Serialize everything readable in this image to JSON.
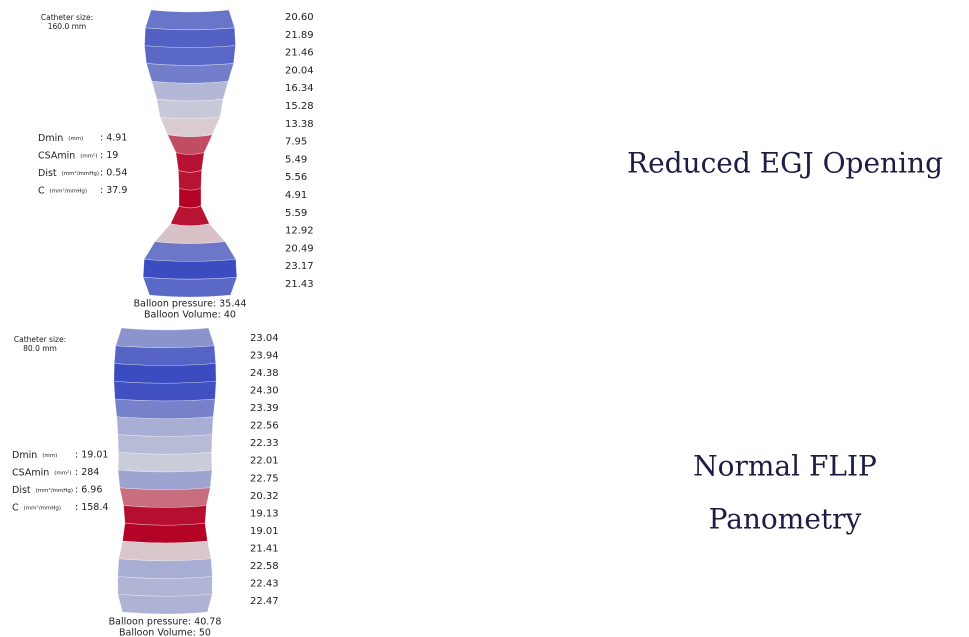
{
  "panels": [
    {
      "catheter_size_label": "Catheter size:",
      "catheter_size": "160.0 mm",
      "stats": [
        {
          "label": "Dmin",
          "unit": "(mm)",
          "value": ": 4.91"
        },
        {
          "label": "CSAmin",
          "unit": "(mm²)",
          "value": ": 19"
        },
        {
          "label": "Dist",
          "unit": "(mm²/mmHg)",
          "value": ": 0.54"
        },
        {
          "label": "C",
          "unit": "(mm²/mmHg)",
          "value": ": 37.9"
        }
      ],
      "diameters": [
        {
          "value": 20.6,
          "label": "20.60"
        },
        {
          "value": 21.89,
          "label": "21.89"
        },
        {
          "value": 21.46,
          "label": "21.46"
        },
        {
          "value": 20.04,
          "label": "20.04"
        },
        {
          "value": 16.34,
          "label": "16.34"
        },
        {
          "value": 15.28,
          "label": "15.28"
        },
        {
          "value": 13.38,
          "label": "13.38"
        },
        {
          "value": 7.95,
          "label": "7.95"
        },
        {
          "value": 5.49,
          "label": "5.49"
        },
        {
          "value": 5.56,
          "label": "5.56"
        },
        {
          "value": 4.91,
          "label": "4.91"
        },
        {
          "value": 5.59,
          "label": "5.59"
        },
        {
          "value": 12.92,
          "label": "12.92"
        },
        {
          "value": 20.49,
          "label": "20.49"
        },
        {
          "value": 23.17,
          "label": "23.17"
        },
        {
          "value": 21.43,
          "label": "21.43"
        }
      ],
      "balloon_pressure": "Balloon pressure: 35.44",
      "balloon_volume": "Balloon Volume: 40",
      "caption": [
        "Reduced EGJ Opening"
      ]
    },
    {
      "catheter_size_label": "Catheter size:",
      "catheter_size": "80.0 mm",
      "stats": [
        {
          "label": "Dmin",
          "unit": "(mm)",
          "value": ": 19.01"
        },
        {
          "label": "CSAmin",
          "unit": "(mm²)",
          "value": ": 284"
        },
        {
          "label": "Dist",
          "unit": "(mm²/mmHg)",
          "value": ": 6.96"
        },
        {
          "label": "C",
          "unit": "(mm²/mmHg)",
          "value": ": 158.4"
        }
      ],
      "diameters": [
        {
          "value": 23.04,
          "label": "23.04"
        },
        {
          "value": 23.94,
          "label": "23.94"
        },
        {
          "value": 24.38,
          "label": "24.38"
        },
        {
          "value": 24.3,
          "label": "24.30"
        },
        {
          "value": 23.39,
          "label": "23.39"
        },
        {
          "value": 22.56,
          "label": "22.56"
        },
        {
          "value": 22.33,
          "label": "22.33"
        },
        {
          "value": 22.01,
          "label": "22.01"
        },
        {
          "value": 22.75,
          "label": "22.75"
        },
        {
          "value": 20.32,
          "label": "20.32"
        },
        {
          "value": 19.13,
          "label": "19.13"
        },
        {
          "value": 19.01,
          "label": "19.01"
        },
        {
          "value": 21.41,
          "label": "21.41"
        },
        {
          "value": 22.58,
          "label": "22.58"
        },
        {
          "value": 22.43,
          "label": "22.43"
        },
        {
          "value": 22.47,
          "label": "22.47"
        }
      ],
      "balloon_pressure": "Balloon pressure: 40.78",
      "balloon_volume": "Balloon Volume: 50",
      "caption": [
        "Normal FLIP",
        "Panometry"
      ]
    }
  ]
}
